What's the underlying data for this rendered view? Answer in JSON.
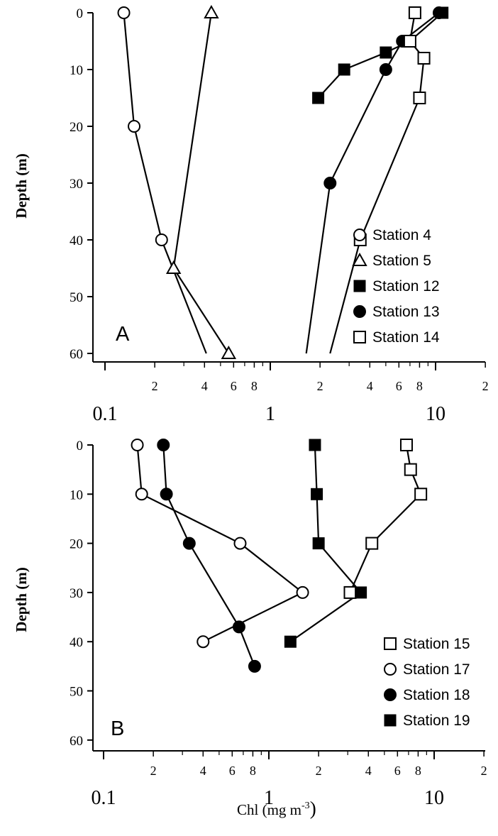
{
  "chart_data": [
    {
      "type": "line",
      "panel_label": "A",
      "ylabel": "Depth (m)",
      "xlabel": "",
      "x_scale": "log",
      "xlim": [
        0.07,
        20
      ],
      "ylim": [
        62,
        0
      ],
      "y_ticks": [
        "0",
        "10",
        "20",
        "30",
        "40",
        "50",
        "60"
      ],
      "x_major_ticks": [
        "0.1",
        "1",
        "10"
      ],
      "x_minor_labels": [
        "2",
        "4",
        "6",
        "8",
        "2",
        "4",
        "6",
        "8",
        "2"
      ],
      "legend_position": "bottom-right",
      "series": [
        {
          "name": "Station 4",
          "marker": "circle-open",
          "points": [
            [
              0.13,
              0
            ],
            [
              0.15,
              20
            ],
            [
              0.22,
              40
            ],
            [
              0.41,
              60
            ]
          ]
        },
        {
          "name": "Station 5",
          "marker": "triangle-open",
          "points": [
            [
              0.44,
              0
            ],
            [
              0.26,
              45
            ],
            [
              0.56,
              60
            ]
          ]
        },
        {
          "name": "Station 12",
          "marker": "square-filled",
          "points": [
            [
              11,
              0
            ],
            [
              7,
              5
            ],
            [
              5,
              7
            ],
            [
              2.8,
              10
            ],
            [
              1.95,
              15
            ]
          ]
        },
        {
          "name": "Station 13",
          "marker": "circle-filled",
          "points": [
            [
              10.5,
              0
            ],
            [
              6.3,
              5
            ],
            [
              5,
              10
            ],
            [
              2.3,
              30
            ],
            [
              1.65,
              60
            ]
          ]
        },
        {
          "name": "Station 14",
          "marker": "square-open",
          "points": [
            [
              7.5,
              0
            ],
            [
              7,
              5
            ],
            [
              8.5,
              8
            ],
            [
              8,
              15
            ],
            [
              3.5,
              40
            ],
            [
              2.3,
              60
            ]
          ]
        }
      ]
    },
    {
      "type": "line",
      "panel_label": "B",
      "ylabel": "Depth (m)",
      "xlabel": "Chl (mg m",
      "xlabel_sup": "-3",
      "xlabel_close": ")",
      "x_scale": "log",
      "xlim": [
        0.07,
        20
      ],
      "ylim": [
        62,
        0
      ],
      "y_ticks": [
        "0",
        "10",
        "20",
        "30",
        "40",
        "50",
        "60"
      ],
      "x_major_ticks": [
        "0.1",
        "1",
        "10"
      ],
      "x_minor_labels": [
        "2",
        "4",
        "6",
        "8",
        "2",
        "4",
        "6",
        "8",
        "2"
      ],
      "legend_position": "bottom-right",
      "series": [
        {
          "name": "Station 15",
          "marker": "square-open",
          "points": [
            [
              6.8,
              0
            ],
            [
              7.2,
              5
            ],
            [
              8.3,
              10
            ],
            [
              4.2,
              20
            ],
            [
              3.1,
              30
            ]
          ]
        },
        {
          "name": "Station 17",
          "marker": "circle-open",
          "points": [
            [
              0.16,
              0
            ],
            [
              0.17,
              10
            ],
            [
              0.67,
              20
            ],
            [
              1.6,
              30
            ],
            [
              0.4,
              40
            ]
          ]
        },
        {
          "name": "Station 18",
          "marker": "circle-filled",
          "points": [
            [
              0.23,
              0
            ],
            [
              0.24,
              10
            ],
            [
              0.33,
              20
            ],
            [
              0.66,
              37
            ],
            [
              0.82,
              45
            ]
          ]
        },
        {
          "name": "Station 19",
          "marker": "square-filled",
          "points": [
            [
              1.9,
              0
            ],
            [
              1.95,
              10
            ],
            [
              2.0,
              20
            ],
            [
              3.6,
              30
            ],
            [
              1.35,
              40
            ]
          ]
        }
      ]
    }
  ]
}
